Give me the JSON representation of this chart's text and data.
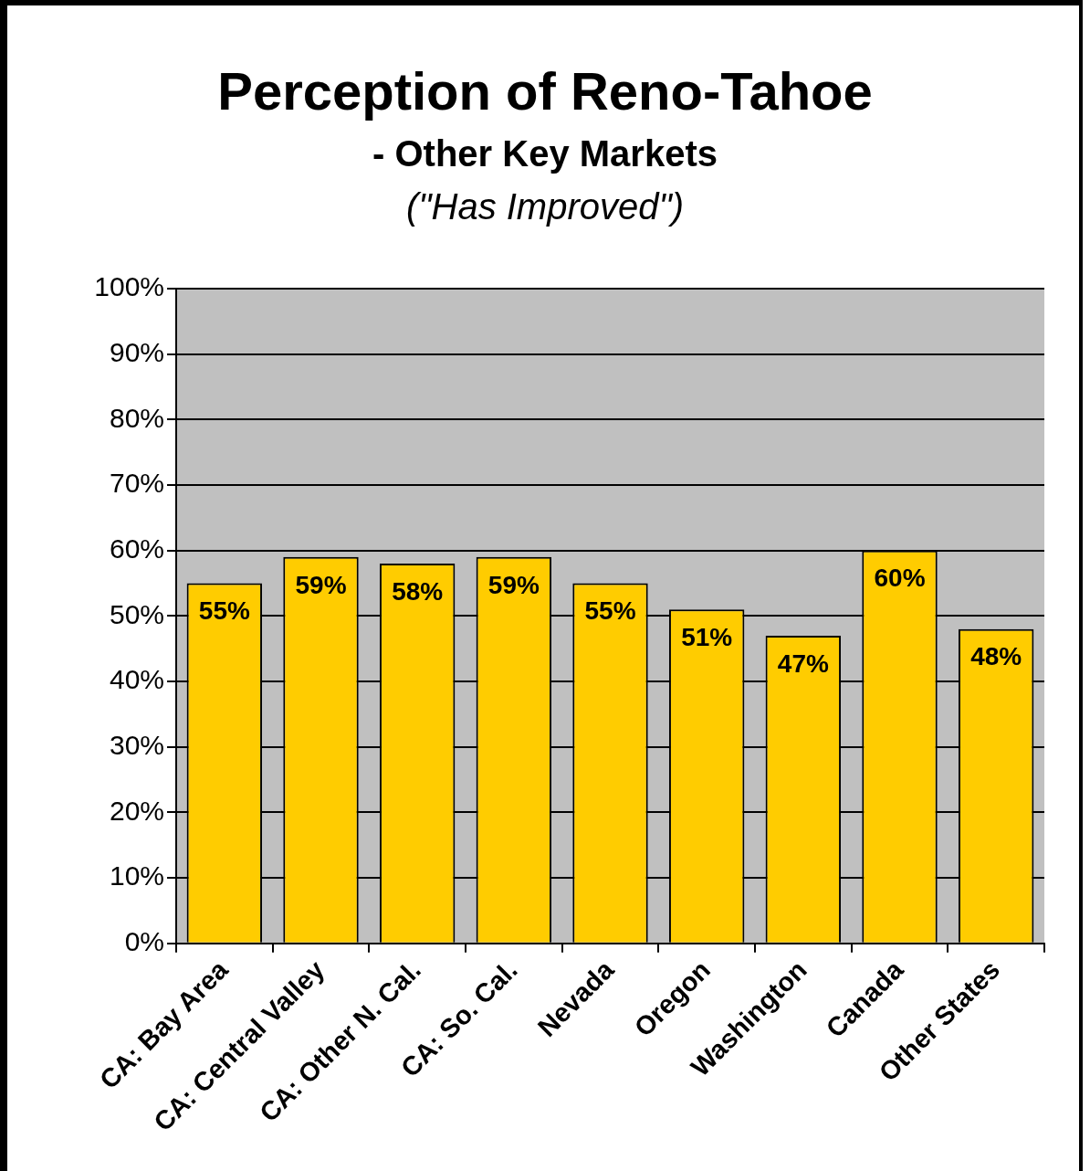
{
  "chart_data": {
    "type": "bar",
    "title": "Perception of Reno-Tahoe",
    "subtitle": "- Other Key Markets",
    "annotations": [
      "(\"Has Improved\")"
    ],
    "categories": [
      "CA: Bay Area",
      "CA: Central Valley",
      "CA: Other N. Cal.",
      "CA: So. Cal.",
      "Nevada",
      "Oregon",
      "Washington",
      "Canada",
      "Other States"
    ],
    "values": [
      55,
      59,
      58,
      59,
      55,
      51,
      47,
      60,
      48
    ],
    "value_labels": [
      "55%",
      "59%",
      "58%",
      "59%",
      "55%",
      "51%",
      "47%",
      "60%",
      "48%"
    ],
    "color": "#ffcc00",
    "ylim": [
      0,
      100
    ],
    "yticks": [
      {
        "value": 0,
        "label": "0%"
      },
      {
        "value": 10,
        "label": "10%"
      },
      {
        "value": 20,
        "label": "20%"
      },
      {
        "value": 30,
        "label": "30%"
      },
      {
        "value": 40,
        "label": "40%"
      },
      {
        "value": 50,
        "label": "50%"
      },
      {
        "value": 60,
        "label": "60%"
      },
      {
        "value": 70,
        "label": "70%"
      },
      {
        "value": 80,
        "label": "80%"
      },
      {
        "value": 90,
        "label": "90%"
      },
      {
        "value": 100,
        "label": "100%"
      }
    ],
    "grid": "y",
    "legend": false
  }
}
